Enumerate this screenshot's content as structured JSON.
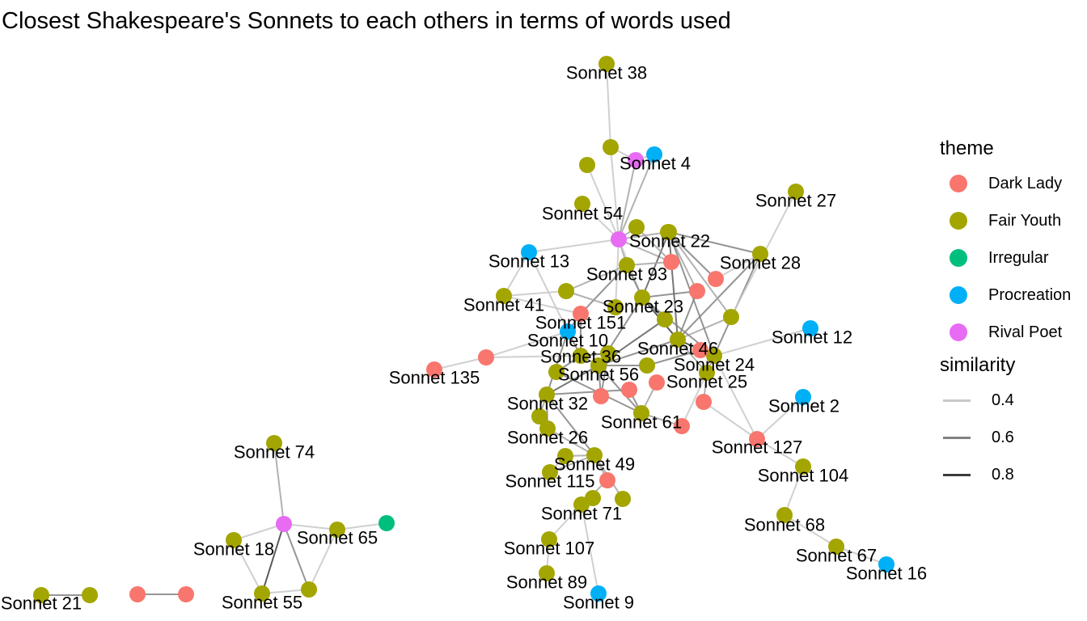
{
  "title": "Closest Shakespeare's Sonnets to each others in terms of words used",
  "chart_data": {
    "type": "network",
    "theme_colors": {
      "Dark Lady": "#F8766D",
      "Fair Youth": "#A3A500",
      "Irregular": "#00BF7D",
      "Procreation": "#00B0F6",
      "Rival Poet": "#E76BF3"
    },
    "legend": {
      "theme_title": "theme",
      "theme_items": [
        "Dark Lady",
        "Fair Youth",
        "Irregular",
        "Procreation",
        "Rival Poet"
      ],
      "similarity_title": "similarity",
      "similarity_items": [
        {
          "label": "0.4",
          "value": 0.4
        },
        {
          "label": "0.6",
          "value": 0.6
        },
        {
          "label": "0.8",
          "value": 0.8
        }
      ],
      "position": "right"
    },
    "nodes": [
      {
        "id": "n38",
        "label": "Sonnet 38",
        "theme": "Fair Youth"
      },
      {
        "id": "n4",
        "label": "Sonnet 4",
        "theme": "Procreation"
      },
      {
        "id": "n54",
        "label": "Sonnet 54",
        "theme": "Fair Youth"
      },
      {
        "id": "n22",
        "label": "Sonnet 22",
        "theme": "Fair Youth"
      },
      {
        "id": "n27",
        "label": "Sonnet 27",
        "theme": "Fair Youth"
      },
      {
        "id": "n28",
        "label": "Sonnet 28",
        "theme": "Fair Youth"
      },
      {
        "id": "n13",
        "label": "Sonnet 13",
        "theme": "Procreation"
      },
      {
        "id": "n93",
        "label": "Sonnet 93",
        "theme": "Fair Youth"
      },
      {
        "id": "n41",
        "label": "Sonnet 41",
        "theme": "Fair Youth"
      },
      {
        "id": "n23",
        "label": "Sonnet 23",
        "theme": "Fair Youth"
      },
      {
        "id": "n151",
        "label": "Sonnet 151",
        "theme": "Dark Lady"
      },
      {
        "id": "n10",
        "label": "Sonnet 10",
        "theme": "Procreation"
      },
      {
        "id": "n12",
        "label": "Sonnet 12",
        "theme": "Procreation"
      },
      {
        "id": "n36",
        "label": "Sonnet 36",
        "theme": "Fair Youth"
      },
      {
        "id": "n46",
        "label": "Sonnet 46",
        "theme": "Fair Youth"
      },
      {
        "id": "n24",
        "label": "Sonnet 24",
        "theme": "Fair Youth"
      },
      {
        "id": "n135",
        "label": "Sonnet 135",
        "theme": "Dark Lady"
      },
      {
        "id": "n56",
        "label": "Sonnet 56",
        "theme": "Fair Youth"
      },
      {
        "id": "n25",
        "label": "Sonnet 25",
        "theme": "Fair Youth"
      },
      {
        "id": "n32",
        "label": "Sonnet 32",
        "theme": "Fair Youth"
      },
      {
        "id": "n2",
        "label": "Sonnet 2",
        "theme": "Procreation"
      },
      {
        "id": "n61",
        "label": "Sonnet 61",
        "theme": "Fair Youth"
      },
      {
        "id": "n26",
        "label": "Sonnet 26",
        "theme": "Fair Youth"
      },
      {
        "id": "n127",
        "label": "Sonnet 127",
        "theme": "Dark Lady"
      },
      {
        "id": "n104",
        "label": "Sonnet 104",
        "theme": "Fair Youth"
      },
      {
        "id": "n74",
        "label": "Sonnet 74",
        "theme": "Fair Youth"
      },
      {
        "id": "n49",
        "label": "Sonnet 49",
        "theme": "Fair Youth"
      },
      {
        "id": "n115",
        "label": "Sonnet 115",
        "theme": "Fair Youth"
      },
      {
        "id": "n71",
        "label": "Sonnet 71",
        "theme": "Fair Youth"
      },
      {
        "id": "n65",
        "label": "Sonnet 65",
        "theme": "Fair Youth"
      },
      {
        "id": "n68",
        "label": "Sonnet 68",
        "theme": "Fair Youth"
      },
      {
        "id": "n18",
        "label": "Sonnet 18",
        "theme": "Fair Youth"
      },
      {
        "id": "n67",
        "label": "Sonnet 67",
        "theme": "Fair Youth"
      },
      {
        "id": "n107",
        "label": "Sonnet 107",
        "theme": "Fair Youth"
      },
      {
        "id": "n16",
        "label": "Sonnet 16",
        "theme": "Procreation"
      },
      {
        "id": "n89",
        "label": "Sonnet 89",
        "theme": "Fair Youth"
      },
      {
        "id": "n55",
        "label": "Sonnet 55",
        "theme": "Fair Youth"
      },
      {
        "id": "n21",
        "label": "Sonnet 21",
        "theme": "Fair Youth"
      },
      {
        "id": "n9",
        "label": "Sonnet 9",
        "theme": "Procreation"
      },
      {
        "id": "u1",
        "label": "",
        "theme": "Fair Youth"
      },
      {
        "id": "u2",
        "label": "",
        "theme": "Rival Poet"
      },
      {
        "id": "u3",
        "label": "",
        "theme": "Fair Youth"
      },
      {
        "id": "u4",
        "label": "",
        "theme": "Rival Poet"
      },
      {
        "id": "u5",
        "label": "",
        "theme": "Fair Youth"
      },
      {
        "id": "u6",
        "label": "",
        "theme": "Fair Youth"
      },
      {
        "id": "u7",
        "label": "",
        "theme": "Dark Lady"
      },
      {
        "id": "u8",
        "label": "",
        "theme": "Dark Lady"
      },
      {
        "id": "u9",
        "label": "",
        "theme": "Dark Lady"
      },
      {
        "id": "u10",
        "label": "",
        "theme": "Fair Youth"
      },
      {
        "id": "u11",
        "label": "",
        "theme": "Dark Lady"
      },
      {
        "id": "u12",
        "label": "",
        "theme": "Fair Youth"
      },
      {
        "id": "u13",
        "label": "",
        "theme": "Fair Youth"
      },
      {
        "id": "u14",
        "label": "",
        "theme": "Dark Lady"
      },
      {
        "id": "u15",
        "label": "",
        "theme": "Fair Youth"
      },
      {
        "id": "u16",
        "label": "",
        "theme": "Fair Youth"
      },
      {
        "id": "u17",
        "label": "",
        "theme": "Fair Youth"
      },
      {
        "id": "u18",
        "label": "",
        "theme": "Dark Lady"
      },
      {
        "id": "u19",
        "label": "",
        "theme": "Fair Youth"
      },
      {
        "id": "u20",
        "label": "",
        "theme": "Dark Lady"
      },
      {
        "id": "u21",
        "label": "",
        "theme": "Dark Lady"
      },
      {
        "id": "u22",
        "label": "",
        "theme": "Dark Lady"
      },
      {
        "id": "u23",
        "label": "",
        "theme": "Dark Lady"
      },
      {
        "id": "u24",
        "label": "",
        "theme": "Fair Youth"
      },
      {
        "id": "u25",
        "label": "",
        "theme": "Fair Youth"
      },
      {
        "id": "u26",
        "label": "",
        "theme": "Dark Lady"
      },
      {
        "id": "u27",
        "label": "",
        "theme": "Fair Youth"
      },
      {
        "id": "u28",
        "label": "",
        "theme": "Fair Youth"
      },
      {
        "id": "u29",
        "label": "",
        "theme": "Fair Youth"
      },
      {
        "id": "u30",
        "label": "",
        "theme": "Fair Youth"
      },
      {
        "id": "u31",
        "label": "",
        "theme": "Rival Poet"
      },
      {
        "id": "u32",
        "label": "",
        "theme": "Irregular"
      },
      {
        "id": "u33",
        "label": "",
        "theme": "Dark Lady"
      },
      {
        "id": "u34",
        "label": "",
        "theme": "Dark Lady"
      }
    ],
    "edges": [
      {
        "from": "n38",
        "to": "u1",
        "similarity": 0.4
      },
      {
        "from": "u1",
        "to": "u2",
        "similarity": 0.4
      },
      {
        "from": "u1",
        "to": "u4",
        "similarity": 0.4
      },
      {
        "from": "u2",
        "to": "n4",
        "similarity": 0.4
      },
      {
        "from": "u2",
        "to": "u4",
        "similarity": 0.5
      },
      {
        "from": "n4",
        "to": "u4",
        "similarity": 0.5
      },
      {
        "from": "u3",
        "to": "u4",
        "similarity": 0.4
      },
      {
        "from": "n54",
        "to": "u4",
        "similarity": 0.4
      },
      {
        "from": "u4",
        "to": "u5",
        "similarity": 0.5
      },
      {
        "from": "u4",
        "to": "u6",
        "similarity": 0.5
      },
      {
        "from": "u4",
        "to": "n93",
        "similarity": 0.5
      },
      {
        "from": "u4",
        "to": "u7",
        "similarity": 0.5
      },
      {
        "from": "u4",
        "to": "n23",
        "similarity": 0.4
      },
      {
        "from": "u4",
        "to": "u19",
        "similarity": 0.4
      },
      {
        "from": "u4",
        "to": "n13",
        "similarity": 0.4
      },
      {
        "from": "n13",
        "to": "n41",
        "similarity": 0.4
      },
      {
        "from": "n13",
        "to": "n10",
        "similarity": 0.4
      },
      {
        "from": "u10",
        "to": "n41",
        "similarity": 0.4
      },
      {
        "from": "n41",
        "to": "n151",
        "similarity": 0.4
      },
      {
        "from": "n135",
        "to": "u11",
        "similarity": 0.4
      },
      {
        "from": "u11",
        "to": "n36",
        "similarity": 0.4
      },
      {
        "from": "u11",
        "to": "n10",
        "similarity": 0.4
      },
      {
        "from": "u6",
        "to": "u8",
        "similarity": 0.5
      },
      {
        "from": "u6",
        "to": "u9",
        "similarity": 0.6
      },
      {
        "from": "u8",
        "to": "n23",
        "similarity": 0.6
      },
      {
        "from": "u8",
        "to": "n46",
        "similarity": 0.6
      },
      {
        "from": "u9",
        "to": "n28",
        "similarity": 0.4
      },
      {
        "from": "n28",
        "to": "n46",
        "similarity": 0.6
      },
      {
        "from": "n28",
        "to": "n24",
        "similarity": 0.6
      },
      {
        "from": "n28",
        "to": "n22",
        "similarity": 0.6
      },
      {
        "from": "n27",
        "to": "u12",
        "similarity": 0.4
      },
      {
        "from": "u12",
        "to": "n22",
        "similarity": 0.5
      },
      {
        "from": "u12",
        "to": "n46",
        "similarity": 0.5
      },
      {
        "from": "n22",
        "to": "n23",
        "similarity": 0.7
      },
      {
        "from": "n22",
        "to": "n46",
        "similarity": 0.7
      },
      {
        "from": "n22",
        "to": "n24",
        "similarity": 0.6
      },
      {
        "from": "n23",
        "to": "n46",
        "similarity": 0.8
      },
      {
        "from": "n23",
        "to": "n24",
        "similarity": 0.6
      },
      {
        "from": "n23",
        "to": "n56",
        "similarity": 0.6
      },
      {
        "from": "n46",
        "to": "n24",
        "similarity": 0.8
      },
      {
        "from": "n46",
        "to": "n56",
        "similarity": 0.6
      },
      {
        "from": "n46",
        "to": "n25",
        "similarity": 0.5
      },
      {
        "from": "n24",
        "to": "u14",
        "similarity": 0.6
      },
      {
        "from": "n24",
        "to": "n12",
        "similarity": 0.4
      },
      {
        "from": "n24",
        "to": "n127",
        "similarity": 0.4
      },
      {
        "from": "n24",
        "to": "n25",
        "similarity": 0.5
      },
      {
        "from": "n25",
        "to": "u20",
        "similarity": 0.4
      },
      {
        "from": "n25",
        "to": "u18",
        "similarity": 0.5
      },
      {
        "from": "n127",
        "to": "u18",
        "similarity": 0.4
      },
      {
        "from": "n127",
        "to": "n2",
        "similarity": 0.4
      },
      {
        "from": "n127",
        "to": "n104",
        "similarity": 0.4
      },
      {
        "from": "n104",
        "to": "n68",
        "similarity": 0.4
      },
      {
        "from": "n68",
        "to": "n67",
        "similarity": 0.4
      },
      {
        "from": "n67",
        "to": "n16",
        "similarity": 0.4
      },
      {
        "from": "n56",
        "to": "n32",
        "similarity": 0.7
      },
      {
        "from": "n56",
        "to": "n36",
        "similarity": 0.6
      },
      {
        "from": "n56",
        "to": "n61",
        "similarity": 0.6
      },
      {
        "from": "n56",
        "to": "u13",
        "similarity": 0.7
      },
      {
        "from": "n56",
        "to": "u15",
        "similarity": 0.6
      },
      {
        "from": "n36",
        "to": "n10",
        "similarity": 0.6
      },
      {
        "from": "n36",
        "to": "n151",
        "similarity": 0.6
      },
      {
        "from": "n36",
        "to": "u16",
        "similarity": 0.7
      },
      {
        "from": "n36",
        "to": "u17",
        "similarity": 0.6
      },
      {
        "from": "n32",
        "to": "n26",
        "similarity": 0.6
      },
      {
        "from": "n32",
        "to": "u24",
        "similarity": 0.5
      },
      {
        "from": "n32",
        "to": "n49",
        "similarity": 0.6
      },
      {
        "from": "n32",
        "to": "u22",
        "similarity": 0.6
      },
      {
        "from": "n26",
        "to": "u24",
        "similarity": 0.5
      },
      {
        "from": "n26",
        "to": "n49",
        "similarity": 0.5
      },
      {
        "from": "n61",
        "to": "u21",
        "similarity": 0.5
      },
      {
        "from": "n61",
        "to": "u20",
        "similarity": 0.5
      },
      {
        "from": "n61",
        "to": "u22",
        "similarity": 0.6
      },
      {
        "from": "n49",
        "to": "u25",
        "similarity": 0.5
      },
      {
        "from": "n49",
        "to": "n115",
        "similarity": 0.5
      },
      {
        "from": "n49",
        "to": "u26",
        "similarity": 0.5
      },
      {
        "from": "n49",
        "to": "u27",
        "similarity": 0.5
      },
      {
        "from": "n115",
        "to": "u25",
        "similarity": 0.4
      },
      {
        "from": "u26",
        "to": "n71",
        "similarity": 0.5
      },
      {
        "from": "n71",
        "to": "n107",
        "similarity": 0.4
      },
      {
        "from": "n71",
        "to": "n9",
        "similarity": 0.4
      },
      {
        "from": "n107",
        "to": "n89",
        "similarity": 0.4
      },
      {
        "from": "u7",
        "to": "n93",
        "similarity": 0.5
      },
      {
        "from": "n93",
        "to": "n151",
        "similarity": 0.6
      },
      {
        "from": "n93",
        "to": "n23",
        "similarity": 0.6
      },
      {
        "from": "u5",
        "to": "u7",
        "similarity": 0.5
      },
      {
        "from": "u10",
        "to": "n93",
        "similarity": 0.5
      },
      {
        "from": "u10",
        "to": "u19",
        "similarity": 0.5
      },
      {
        "from": "n151",
        "to": "n10",
        "similarity": 0.6
      },
      {
        "from": "n10",
        "to": "n32",
        "similarity": 0.6
      },
      {
        "from": "u14",
        "to": "u15",
        "similarity": 0.6
      },
      {
        "from": "u13",
        "to": "n23",
        "similarity": 0.6
      },
      {
        "from": "u17",
        "to": "n61",
        "similarity": 0.6
      },
      {
        "from": "u16",
        "to": "u23",
        "similarity": 0.6
      },
      {
        "from": "u23",
        "to": "n56",
        "similarity": 0.6
      },
      {
        "from": "n74",
        "to": "u31",
        "similarity": 0.5
      },
      {
        "from": "u31",
        "to": "n18",
        "similarity": 0.4
      },
      {
        "from": "u31",
        "to": "n65",
        "similarity": 0.4
      },
      {
        "from": "u31",
        "to": "n55",
        "similarity": 0.8
      },
      {
        "from": "u31",
        "to": "u30",
        "similarity": 0.6
      },
      {
        "from": "n65",
        "to": "u32",
        "similarity": 0.4
      },
      {
        "from": "n65",
        "to": "u30",
        "similarity": 0.4
      },
      {
        "from": "n18",
        "to": "n55",
        "similarity": 0.4
      },
      {
        "from": "n55",
        "to": "u30",
        "similarity": 0.4
      },
      {
        "from": "n21",
        "to": "u28",
        "similarity": 0.6
      },
      {
        "from": "u33",
        "to": "u34",
        "similarity": 0.6
      }
    ]
  }
}
